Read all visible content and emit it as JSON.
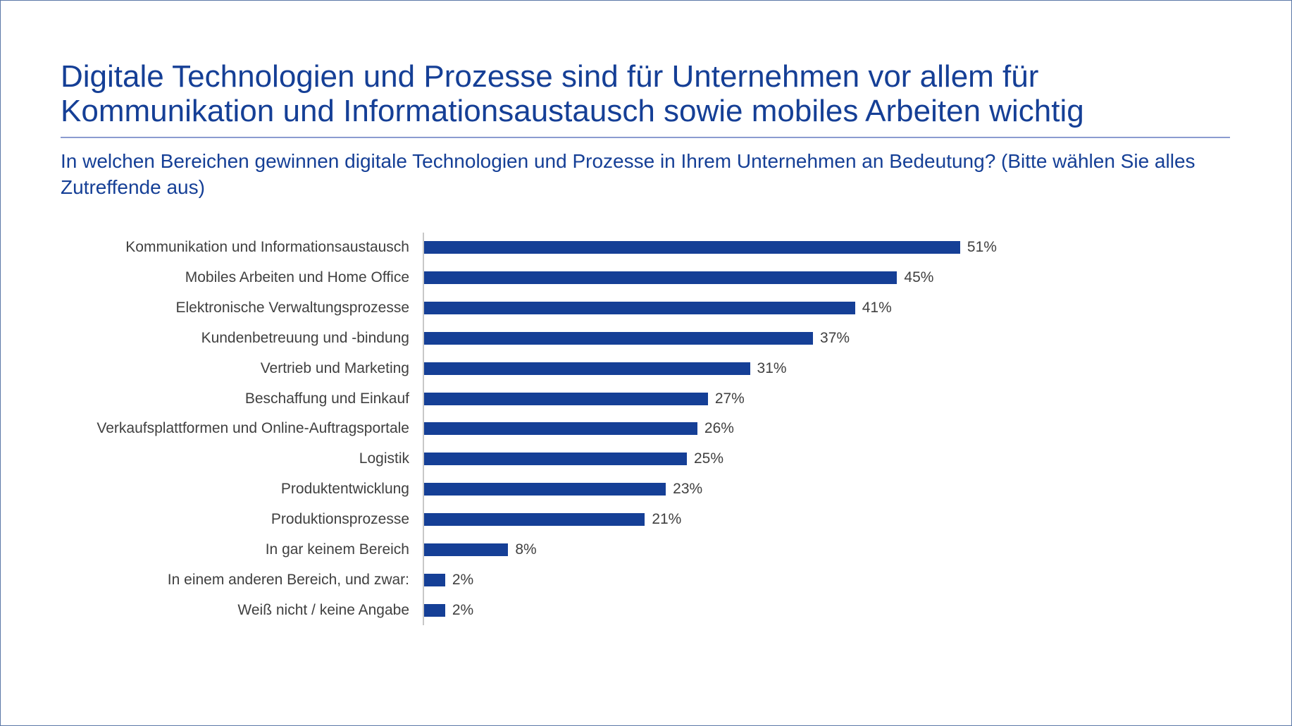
{
  "title": "Digitale Technologien und Prozesse sind für Unternehmen vor allem für Kommunikation und Informationsaustausch sowie mobiles Arbeiten wichtig",
  "subtitle": "In welchen Bereichen gewinnen digitale Technologien und Prozesse in Ihrem Unternehmen an Bedeutung? (Bitte wählen Sie alles Zutreffende aus)",
  "colors": {
    "bar": "#153f96",
    "title": "#153f96",
    "label": "#404040"
  },
  "chart_data": {
    "type": "bar",
    "orientation": "horizontal",
    "categories": [
      "Kommunikation und Informationsaustausch",
      "Mobiles Arbeiten und Home Office",
      "Elektronische Verwaltungsprozesse",
      "Kundenbetreuung und -bindung",
      "Vertrieb und Marketing",
      "Beschaffung und Einkauf",
      "Verkaufsplattformen und Online-Auftragsportale",
      "Logistik",
      "Produktentwicklung",
      "Produktionsprozesse",
      "In gar keinem Bereich",
      "In einem anderen Bereich, und zwar:",
      "Weiß nicht / keine Angabe"
    ],
    "values": [
      51,
      45,
      41,
      37,
      31,
      27,
      26,
      25,
      23,
      21,
      8,
      2,
      2
    ],
    "data_labels": [
      "51%",
      "45%",
      "41%",
      "37%",
      "31%",
      "27%",
      "26%",
      "25%",
      "23%",
      "21%",
      "8%",
      "2%",
      "2%"
    ],
    "unit": "%",
    "grid": false,
    "legend": "none"
  }
}
